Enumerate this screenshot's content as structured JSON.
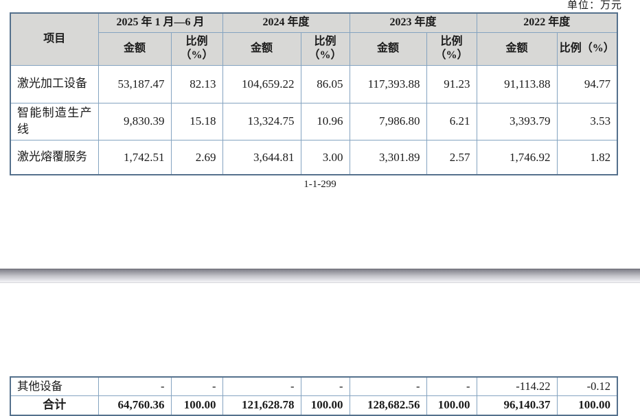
{
  "page": {
    "unit_label": "单位：万元",
    "page_number": "1-1-299"
  },
  "table": {
    "headers": {
      "item": "项目",
      "periods": [
        "2025 年 1 月—6 月",
        "2024 年度",
        "2023 年度",
        "2022 年度"
      ],
      "amount": "金额",
      "ratio_line1": "比例",
      "ratio_line2": "（%）",
      "ratio_wide": "比例（%）"
    },
    "rows": [
      {
        "label": "激光加工设备",
        "cells": [
          "53,187.47",
          "82.13",
          "104,659.22",
          "86.05",
          "117,393.88",
          "91.23",
          "91,113.88",
          "94.77"
        ]
      },
      {
        "label": "智能制造生产线",
        "cells": [
          "9,830.39",
          "15.18",
          "13,324.75",
          "10.96",
          "7,986.80",
          "6.21",
          "3,393.79",
          "3.53"
        ]
      },
      {
        "label": "激光熔覆服务",
        "cells": [
          "1,742.51",
          "2.69",
          "3,644.81",
          "3.00",
          "3,301.89",
          "2.57",
          "1,746.92",
          "1.82"
        ]
      }
    ],
    "continuation_rows": [
      {
        "label": "其他设备",
        "cells": [
          "-",
          "-",
          "-",
          "-",
          "-",
          "-",
          "-114.22",
          "-0.12"
        ]
      },
      {
        "label": "合计",
        "cells": [
          "64,760.36",
          "100.00",
          "121,628.78",
          "100.00",
          "128,682.56",
          "100.00",
          "96,140.37",
          "100.00"
        ]
      }
    ]
  },
  "colors": {
    "border_outer": "#54708c",
    "border_inner": "#84a3c0",
    "header_bg": "#d8d8d6",
    "text_color": "#1a1a1a"
  }
}
